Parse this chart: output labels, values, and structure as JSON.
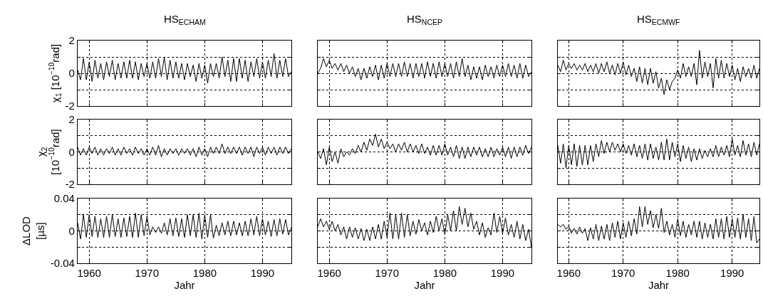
{
  "chart_data": [
    {
      "type": "line",
      "title": "HS$_{ECHAM}$",
      "ylabel": "χ$_{1}$ [10$^{−10}$rad]",
      "xlim": [
        1958,
        1995
      ],
      "ylim": [
        -2,
        2
      ],
      "xticks": [
        1960,
        1970,
        1980,
        1990
      ],
      "yticks": [
        -2,
        {
          "value": -1,
          "label": null
        },
        0,
        {
          "value": 1,
          "label": null
        },
        2
      ],
      "grid": true,
      "tick_labels": "y",
      "x": [
        1958,
        1958.5,
        1959,
        1959.5,
        1960,
        1960.5,
        1961,
        1961.5,
        1962,
        1962.5,
        1963,
        1963.5,
        1964,
        1964.5,
        1965,
        1965.5,
        1966,
        1966.5,
        1967,
        1967.5,
        1968,
        1968.5,
        1969,
        1969.5,
        1970,
        1970.5,
        1971,
        1971.5,
        1972,
        1972.5,
        1973,
        1973.5,
        1974,
        1974.5,
        1975,
        1975.5,
        1976,
        1976.5,
        1977,
        1977.5,
        1978,
        1978.5,
        1979,
        1979.5,
        1980,
        1980.5,
        1981,
        1981.5,
        1982,
        1982.5,
        1983,
        1983.5,
        1984,
        1984.5,
        1985,
        1985.5,
        1986,
        1986.5,
        1987,
        1987.5,
        1988,
        1988.5,
        1989,
        1989.5,
        1990,
        1990.5,
        1991,
        1991.5,
        1992,
        1992.5,
        1993,
        1993.5,
        1994,
        1994.5,
        1995
      ],
      "series": [
        {
          "color": "#000000",
          "values": [
            0.2,
            -0.4,
            0.9,
            -0.4,
            0.7,
            -0.5,
            0.8,
            -0.3,
            0.6,
            -0.4,
            0.7,
            -0.2,
            0.8,
            -0.4,
            0.6,
            -0.3,
            0.7,
            -0.3,
            0.8,
            -0.3,
            0.7,
            -0.4,
            0.6,
            -0.2,
            0.6,
            -0.3,
            0.7,
            -0.3,
            0.9,
            -0.2,
            1.0,
            -0.4,
            0.8,
            -0.3,
            0.7,
            -0.3,
            0.6,
            -0.4,
            0.6,
            -0.2,
            0.5,
            -0.5,
            0.6,
            -0.3,
            0.5,
            -0.6,
            0.6,
            -0.2,
            0.6,
            -0.3,
            1.0,
            -0.2,
            0.8,
            -0.5,
            0.9,
            -0.5,
            0.9,
            -0.3,
            0.8,
            -0.5,
            0.7,
            -0.2,
            0.9,
            -0.3,
            0.7,
            -0.3,
            0.8,
            -0.2,
            1.2,
            -0.3,
            0.8,
            -0.2,
            0.9,
            -0.2,
            0.1
          ]
        }
      ]
    },
    {
      "type": "line",
      "title": "HS$_{NCEP}$",
      "xlim": [
        1958,
        1995
      ],
      "ylim": [
        -2,
        2
      ],
      "xticks": [
        1960,
        1970,
        1980,
        1990
      ],
      "yticks": [
        -2,
        {
          "value": -1,
          "label": null
        },
        0,
        {
          "value": 1,
          "label": null
        },
        2
      ],
      "grid": true,
      "tick_labels": false,
      "x": [
        1958,
        1958.5,
        1959,
        1959.5,
        1960,
        1960.5,
        1961,
        1961.5,
        1962,
        1962.5,
        1963,
        1963.5,
        1964,
        1964.5,
        1965,
        1965.5,
        1966,
        1966.5,
        1967,
        1967.5,
        1968,
        1968.5,
        1969,
        1969.5,
        1970,
        1970.5,
        1971,
        1971.5,
        1972,
        1972.5,
        1973,
        1973.5,
        1974,
        1974.5,
        1975,
        1975.5,
        1976,
        1976.5,
        1977,
        1977.5,
        1978,
        1978.5,
        1979,
        1979.5,
        1980,
        1980.5,
        1981,
        1981.5,
        1982,
        1982.5,
        1983,
        1983.5,
        1984,
        1984.5,
        1985,
        1985.5,
        1986,
        1986.5,
        1987,
        1987.5,
        1988,
        1988.5,
        1989,
        1989.5,
        1990,
        1990.5,
        1991,
        1991.5,
        1992,
        1992.5,
        1993,
        1993.5,
        1994,
        1994.5,
        1995
      ],
      "series": [
        {
          "color": "#000000",
          "values": [
            0.0,
            0.3,
            0.9,
            0.4,
            0.8,
            0.3,
            0.6,
            0.2,
            0.6,
            0.1,
            0.5,
            0.0,
            0.4,
            -0.2,
            0.3,
            -0.4,
            0.3,
            -0.3,
            0.4,
            -0.2,
            0.5,
            -0.4,
            0.5,
            -0.3,
            0.6,
            -0.2,
            0.6,
            -0.2,
            0.6,
            -0.2,
            0.7,
            -0.2,
            0.6,
            -0.3,
            0.6,
            -0.2,
            0.6,
            -0.3,
            0.7,
            -0.2,
            0.6,
            -0.3,
            0.7,
            -0.2,
            0.6,
            -0.2,
            0.6,
            -0.3,
            0.7,
            -0.2,
            0.9,
            -0.2,
            0.5,
            -0.4,
            0.4,
            -0.3,
            0.4,
            -0.4,
            0.5,
            -0.2,
            0.4,
            -0.3,
            0.5,
            -0.2,
            0.5,
            -0.2,
            0.6,
            -0.2,
            0.5,
            -0.3,
            0.6,
            -0.3,
            0.5,
            -0.2,
            0.1
          ]
        }
      ]
    },
    {
      "type": "line",
      "title": "HS$_{ECMWF}$",
      "xlim": [
        1958,
        1995
      ],
      "ylim": [
        -2,
        2
      ],
      "xticks": [
        1960,
        1970,
        1980,
        1990
      ],
      "yticks": [
        -2,
        {
          "value": -1,
          "label": null
        },
        0,
        {
          "value": 1,
          "label": null
        },
        2
      ],
      "grid": true,
      "tick_labels": false,
      "x": [
        1958,
        1958.5,
        1959,
        1959.5,
        1960,
        1960.5,
        1961,
        1961.5,
        1962,
        1962.5,
        1963,
        1963.5,
        1964,
        1964.5,
        1965,
        1965.5,
        1966,
        1966.5,
        1967,
        1967.5,
        1968,
        1968.5,
        1969,
        1969.5,
        1970,
        1970.5,
        1971,
        1971.5,
        1972,
        1972.5,
        1973,
        1973.5,
        1974,
        1974.5,
        1975,
        1975.5,
        1976,
        1976.5,
        1977,
        1977.5,
        1978,
        1978.5,
        1979,
        1979.5,
        1980,
        1980.5,
        1981,
        1981.5,
        1982,
        1982.5,
        1983,
        1983.5,
        1984,
        1984.5,
        1985,
        1985.5,
        1986,
        1986.5,
        1987,
        1987.5,
        1988,
        1988.5,
        1989,
        1989.5,
        1990,
        1990.5,
        1991,
        1991.5,
        1992,
        1992.5,
        1993,
        1993.5,
        1994,
        1994.5,
        1995
      ],
      "series": [
        {
          "color": "#000000",
          "values": [
            0.5,
            0.1,
            0.8,
            0.2,
            0.6,
            0.3,
            0.6,
            0.2,
            0.5,
            0.2,
            0.6,
            0.1,
            0.5,
            0.1,
            0.6,
            0.0,
            0.6,
            0.1,
            0.7,
            0.0,
            0.5,
            -0.1,
            0.6,
            0.0,
            0.7,
            -0.1,
            0.5,
            -0.2,
            0.3,
            -0.5,
            0.4,
            -0.6,
            0.3,
            -0.7,
            0.3,
            -0.6,
            0.1,
            -0.9,
            -0.3,
            -1.3,
            -0.4,
            -1.0,
            -0.5,
            -0.3,
            0.2,
            -0.3,
            0.6,
            -0.2,
            0.4,
            -0.2,
            0.6,
            -0.7,
            1.4,
            -0.3,
            0.7,
            -0.2,
            0.6,
            -0.9,
            0.9,
            -0.3,
            0.8,
            -0.3,
            0.6,
            -0.2,
            0.5,
            -0.4,
            0.3,
            -0.5,
            0.4,
            -0.2,
            0.3,
            -0.3,
            0.5,
            -0.3,
            0.3
          ]
        }
      ]
    },
    {
      "type": "line",
      "ylabel": "χ$_{2}$\n[10$^{−10}$rad]",
      "xlim": [
        1958,
        1995
      ],
      "ylim": [
        -2,
        2
      ],
      "xticks": [
        1960,
        1970,
        1980,
        1990
      ],
      "yticks": [
        -2,
        {
          "value": -1,
          "label": null
        },
        0,
        {
          "value": 1,
          "label": null
        },
        2
      ],
      "grid": true,
      "tick_labels": "y",
      "x": [
        1958,
        1958.5,
        1959,
        1959.5,
        1960,
        1960.5,
        1961,
        1961.5,
        1962,
        1962.5,
        1963,
        1963.5,
        1964,
        1964.5,
        1965,
        1965.5,
        1966,
        1966.5,
        1967,
        1967.5,
        1968,
        1968.5,
        1969,
        1969.5,
        1970,
        1970.5,
        1971,
        1971.5,
        1972,
        1972.5,
        1973,
        1973.5,
        1974,
        1974.5,
        1975,
        1975.5,
        1976,
        1976.5,
        1977,
        1977.5,
        1978,
        1978.5,
        1979,
        1979.5,
        1980,
        1980.5,
        1981,
        1981.5,
        1982,
        1982.5,
        1983,
        1983.5,
        1984,
        1984.5,
        1985,
        1985.5,
        1986,
        1986.5,
        1987,
        1987.5,
        1988,
        1988.5,
        1989,
        1989.5,
        1990,
        1990.5,
        1991,
        1991.5,
        1992,
        1992.5,
        1993,
        1993.5,
        1994,
        1994.5,
        1995
      ],
      "series": [
        {
          "color": "#000000",
          "values": [
            0.3,
            -0.2,
            0.2,
            -0.2,
            0.3,
            -0.1,
            0.3,
            -0.2,
            0.2,
            -0.2,
            0.2,
            -0.1,
            0.3,
            -0.2,
            0.2,
            -0.2,
            0.3,
            -0.1,
            0.2,
            -0.2,
            0.3,
            -0.1,
            0.2,
            -0.2,
            0.2,
            -0.2,
            0.3,
            -0.2,
            0.4,
            -0.3,
            0.2,
            -0.2,
            0.2,
            -0.1,
            0.2,
            -0.2,
            0.2,
            -0.1,
            0.2,
            -0.2,
            0.2,
            -0.3,
            0.3,
            -0.2,
            0.2,
            -0.3,
            0.3,
            -0.1,
            0.3,
            -0.1,
            0.5,
            -0.1,
            0.3,
            -0.1,
            0.3,
            -0.1,
            0.3,
            -0.2,
            0.3,
            -0.1,
            0.3,
            -0.3,
            0.3,
            -0.1,
            0.3,
            -0.2,
            0.3,
            -0.1,
            0.3,
            -0.2,
            0.3,
            -0.1,
            0.3,
            -0.1,
            0.2
          ]
        }
      ]
    },
    {
      "type": "line",
      "xlim": [
        1958,
        1995
      ],
      "ylim": [
        -2,
        2
      ],
      "xticks": [
        1960,
        1970,
        1980,
        1990
      ],
      "yticks": [
        -2,
        {
          "value": -1,
          "label": null
        },
        0,
        {
          "value": 1,
          "label": null
        },
        2
      ],
      "grid": true,
      "tick_labels": false,
      "x": [
        1958,
        1958.5,
        1959,
        1959.5,
        1960,
        1960.5,
        1961,
        1961.5,
        1962,
        1962.5,
        1963,
        1963.5,
        1964,
        1964.5,
        1965,
        1965.5,
        1966,
        1966.5,
        1967,
        1967.5,
        1968,
        1968.5,
        1969,
        1969.5,
        1970,
        1970.5,
        1971,
        1971.5,
        1972,
        1972.5,
        1973,
        1973.5,
        1974,
        1974.5,
        1975,
        1975.5,
        1976,
        1976.5,
        1977,
        1977.5,
        1978,
        1978.5,
        1979,
        1979.5,
        1980,
        1980.5,
        1981,
        1981.5,
        1982,
        1982.5,
        1983,
        1983.5,
        1984,
        1984.5,
        1985,
        1985.5,
        1986,
        1986.5,
        1987,
        1987.5,
        1988,
        1988.5,
        1989,
        1989.5,
        1990,
        1990.5,
        1991,
        1991.5,
        1992,
        1992.5,
        1993,
        1993.5,
        1994,
        1994.5,
        1995
      ],
      "series": [
        {
          "color": "#000000",
          "values": [
            0.0,
            -0.4,
            0.2,
            -0.8,
            0.3,
            -0.6,
            0.0,
            -0.7,
            0.2,
            -0.3,
            0.0,
            -0.2,
            0.2,
            -0.1,
            0.4,
            0.0,
            0.6,
            0.1,
            0.8,
            0.4,
            1.1,
            0.3,
            0.8,
            0.2,
            0.6,
            0.2,
            0.5,
            0.0,
            0.5,
            0.1,
            0.6,
            0.0,
            0.5,
            0.0,
            0.4,
            -0.1,
            0.5,
            -0.1,
            0.3,
            -0.2,
            0.4,
            -0.2,
            0.4,
            -0.2,
            0.5,
            -0.2,
            0.3,
            -0.3,
            0.4,
            -0.4,
            0.3,
            -0.4,
            0.3,
            -0.3,
            0.3,
            -0.2,
            0.3,
            -0.3,
            0.2,
            -0.3,
            0.3,
            -0.3,
            0.2,
            -0.2,
            0.3,
            -0.3,
            0.3,
            -0.4,
            0.3,
            -0.3,
            0.3,
            -0.2,
            0.4,
            -0.1,
            0.3
          ]
        }
      ]
    },
    {
      "type": "line",
      "xlim": [
        1958,
        1995
      ],
      "ylim": [
        -2,
        2
      ],
      "xticks": [
        1960,
        1970,
        1980,
        1990
      ],
      "yticks": [
        -2,
        {
          "value": -1,
          "label": null
        },
        0,
        {
          "value": 1,
          "label": null
        },
        2
      ],
      "grid": true,
      "tick_labels": false,
      "x": [
        1958,
        1958.5,
        1959,
        1959.5,
        1960,
        1960.5,
        1961,
        1961.5,
        1962,
        1962.5,
        1963,
        1963.5,
        1964,
        1964.5,
        1965,
        1965.5,
        1966,
        1966.5,
        1967,
        1967.5,
        1968,
        1968.5,
        1969,
        1969.5,
        1970,
        1970.5,
        1971,
        1971.5,
        1972,
        1972.5,
        1973,
        1973.5,
        1974,
        1974.5,
        1975,
        1975.5,
        1976,
        1976.5,
        1977,
        1977.5,
        1978,
        1978.5,
        1979,
        1979.5,
        1980,
        1980.5,
        1981,
        1981.5,
        1982,
        1982.5,
        1983,
        1983.5,
        1984,
        1984.5,
        1985,
        1985.5,
        1986,
        1986.5,
        1987,
        1987.5,
        1988,
        1988.5,
        1989,
        1989.5,
        1990,
        1990.5,
        1991,
        1991.5,
        1992,
        1992.5,
        1993,
        1993.5,
        1994,
        1994.5,
        1995
      ],
      "series": [
        {
          "color": "#000000",
          "values": [
            0.4,
            -0.7,
            0.5,
            -1.0,
            0.4,
            -0.8,
            0.5,
            -0.9,
            0.4,
            -0.8,
            0.4,
            -0.8,
            0.4,
            -0.6,
            0.5,
            -0.3,
            0.7,
            -0.1,
            0.6,
            0.0,
            0.6,
            0.1,
            0.5,
            0.0,
            0.5,
            -0.1,
            0.4,
            -0.2,
            0.5,
            -0.3,
            0.4,
            -0.4,
            0.5,
            -0.5,
            0.5,
            -0.4,
            0.3,
            -0.5,
            0.6,
            -0.5,
            0.8,
            -0.5,
            0.6,
            -0.3,
            0.5,
            -0.6,
            0.4,
            -0.4,
            0.3,
            -0.6,
            0.2,
            -0.5,
            0.2,
            -0.4,
            0.1,
            -0.3,
            0.2,
            -0.3,
            0.4,
            -0.3,
            0.3,
            -0.2,
            0.4,
            -0.3,
            0.8,
            -0.2,
            0.4,
            -0.3,
            0.7,
            -0.2,
            0.5,
            -0.3,
            0.6,
            -0.2,
            0.5
          ]
        }
      ]
    },
    {
      "type": "line",
      "ylabel": "ΔLOD\n[µs]",
      "xlabel": "Jahr",
      "xlim": [
        1958,
        1995
      ],
      "ylim": [
        -0.04,
        0.04
      ],
      "xticks": [
        1960,
        1970,
        1980,
        1990
      ],
      "yticks": [
        -0.04,
        {
          "value": -0.02,
          "label": null
        },
        0,
        {
          "value": 0.02,
          "label": null
        },
        0.04
      ],
      "grid": true,
      "x": [
        1958,
        1958.5,
        1959,
        1959.5,
        1960,
        1960.5,
        1961,
        1961.5,
        1962,
        1962.5,
        1963,
        1963.5,
        1964,
        1964.5,
        1965,
        1965.5,
        1966,
        1966.5,
        1967,
        1967.5,
        1968,
        1968.5,
        1969,
        1969.5,
        1970,
        1970.5,
        1971,
        1971.5,
        1972,
        1972.5,
        1973,
        1973.5,
        1974,
        1974.5,
        1975,
        1975.5,
        1976,
        1976.5,
        1977,
        1977.5,
        1978,
        1978.5,
        1979,
        1979.5,
        1980,
        1980.5,
        1981,
        1981.5,
        1982,
        1982.5,
        1983,
        1983.5,
        1984,
        1984.5,
        1985,
        1985.5,
        1986,
        1986.5,
        1987,
        1987.5,
        1988,
        1988.5,
        1989,
        1989.5,
        1990,
        1990.5,
        1991,
        1991.5,
        1992,
        1992.5,
        1993,
        1993.5,
        1994,
        1994.5,
        1995
      ],
      "series": [
        {
          "color": "#000000",
          "values": [
            0.01,
            -0.01,
            0.02,
            -0.008,
            0.02,
            -0.007,
            0.018,
            -0.008,
            0.015,
            -0.008,
            0.018,
            -0.008,
            0.02,
            -0.007,
            0.015,
            -0.008,
            0.016,
            -0.007,
            0.018,
            -0.008,
            0.022,
            -0.008,
            0.02,
            -0.006,
            0.018,
            -0.005,
            0.005,
            -0.002,
            0.005,
            -0.003,
            0.01,
            -0.005,
            0.015,
            -0.006,
            0.016,
            -0.007,
            0.015,
            -0.008,
            0.02,
            -0.006,
            0.02,
            -0.008,
            0.022,
            -0.01,
            0.02,
            -0.008,
            0.02,
            -0.009,
            0.007,
            -0.006,
            0.01,
            -0.005,
            0.012,
            -0.006,
            0.012,
            -0.005,
            0.01,
            -0.006,
            0.012,
            -0.006,
            0.015,
            -0.005,
            0.018,
            -0.006,
            0.015,
            -0.005,
            0.012,
            -0.007,
            0.014,
            -0.006,
            0.015,
            -0.004,
            0.014,
            -0.005,
            0.004
          ]
        }
      ]
    },
    {
      "type": "line",
      "xlabel": "Jahr",
      "xlim": [
        1958,
        1995
      ],
      "ylim": [
        -0.04,
        0.04
      ],
      "xticks": [
        1960,
        1970,
        1980,
        1990
      ],
      "yticks": [
        -0.04,
        {
          "value": -0.02,
          "label": null
        },
        0,
        {
          "value": 0.02,
          "label": null
        },
        0.04
      ],
      "grid": true,
      "tick_labels": "x",
      "x": [
        1958,
        1958.5,
        1959,
        1959.5,
        1960,
        1960.5,
        1961,
        1961.5,
        1962,
        1962.5,
        1963,
        1963.5,
        1964,
        1964.5,
        1965,
        1965.5,
        1966,
        1966.5,
        1967,
        1967.5,
        1968,
        1968.5,
        1969,
        1969.5,
        1970,
        1970.5,
        1971,
        1971.5,
        1972,
        1972.5,
        1973,
        1973.5,
        1974,
        1974.5,
        1975,
        1975.5,
        1976,
        1976.5,
        1977,
        1977.5,
        1978,
        1978.5,
        1979,
        1979.5,
        1980,
        1980.5,
        1981,
        1981.5,
        1982,
        1982.5,
        1983,
        1983.5,
        1984,
        1984.5,
        1985,
        1985.5,
        1986,
        1986.5,
        1987,
        1987.5,
        1988,
        1988.5,
        1989,
        1989.5,
        1990,
        1990.5,
        1991,
        1991.5,
        1992,
        1992.5,
        1993,
        1993.5,
        1994,
        1994.5,
        1995
      ],
      "series": [
        {
          "color": "#000000",
          "values": [
            0.005,
            0.015,
            0.005,
            0.012,
            0.002,
            0.012,
            0.0,
            0.008,
            -0.005,
            0.005,
            -0.01,
            0.005,
            -0.008,
            0.004,
            -0.01,
            0.003,
            -0.012,
            0.002,
            -0.012,
            0.005,
            -0.01,
            0.008,
            -0.01,
            0.012,
            -0.008,
            0.022,
            -0.01,
            0.02,
            -0.01,
            0.022,
            -0.008,
            0.02,
            -0.006,
            0.012,
            -0.004,
            0.014,
            0.0,
            0.01,
            -0.005,
            0.012,
            -0.002,
            0.018,
            0.0,
            0.015,
            -0.004,
            0.02,
            0.0,
            0.025,
            0.0,
            0.03,
            0.008,
            0.028,
            0.005,
            0.022,
            0.002,
            0.012,
            -0.005,
            0.01,
            -0.008,
            0.004,
            -0.005,
            0.022,
            -0.002,
            0.018,
            -0.003,
            0.016,
            -0.005,
            0.008,
            -0.008,
            0.012,
            -0.01,
            0.008,
            -0.012,
            0.002,
            -0.02
          ]
        }
      ]
    },
    {
      "type": "line",
      "xlabel": "Jahr",
      "xlim": [
        1958,
        1995
      ],
      "ylim": [
        -0.04,
        0.04
      ],
      "xticks": [
        1960,
        1970,
        1980,
        1990
      ],
      "yticks": [
        -0.04,
        {
          "value": -0.02,
          "label": null
        },
        0,
        {
          "value": 0.02,
          "label": null
        },
        0.04
      ],
      "grid": true,
      "tick_labels": "x",
      "x": [
        1958,
        1958.5,
        1959,
        1959.5,
        1960,
        1960.5,
        1961,
        1961.5,
        1962,
        1962.5,
        1963,
        1963.5,
        1964,
        1964.5,
        1965,
        1965.5,
        1966,
        1966.5,
        1967,
        1967.5,
        1968,
        1968.5,
        1969,
        1969.5,
        1970,
        1970.5,
        1971,
        1971.5,
        1972,
        1972.5,
        1973,
        1973.5,
        1974,
        1974.5,
        1975,
        1975.5,
        1976,
        1976.5,
        1977,
        1977.5,
        1978,
        1978.5,
        1979,
        1979.5,
        1980,
        1980.5,
        1981,
        1981.5,
        1982,
        1982.5,
        1983,
        1983.5,
        1984,
        1984.5,
        1985,
        1985.5,
        1986,
        1986.5,
        1987,
        1987.5,
        1988,
        1988.5,
        1989,
        1989.5,
        1990,
        1990.5,
        1991,
        1991.5,
        1992,
        1992.5,
        1993,
        1993.5,
        1994,
        1994.5,
        1995
      ],
      "series": [
        {
          "color": "#000000",
          "values": [
            0.008,
            0.005,
            0.008,
            0.002,
            0.006,
            -0.003,
            0.003,
            -0.004,
            0.005,
            -0.003,
            0.003,
            -0.012,
            0.004,
            -0.01,
            0.008,
            -0.012,
            0.006,
            -0.01,
            0.008,
            -0.012,
            0.01,
            -0.008,
            0.012,
            -0.01,
            0.01,
            -0.008,
            0.012,
            -0.006,
            0.015,
            -0.004,
            0.03,
            0.005,
            0.03,
            0.008,
            0.025,
            0.004,
            0.02,
            0.003,
            0.028,
            -0.002,
            0.012,
            -0.005,
            0.008,
            -0.008,
            0.015,
            -0.006,
            0.012,
            -0.008,
            0.008,
            -0.005,
            0.012,
            -0.008,
            0.012,
            -0.01,
            0.01,
            -0.008,
            0.008,
            -0.01,
            0.015,
            -0.008,
            0.015,
            -0.01,
            0.018,
            -0.008,
            0.015,
            -0.008,
            0.016,
            -0.01,
            0.02,
            -0.008,
            0.015,
            -0.012,
            0.018,
            -0.015,
            -0.01
          ]
        }
      ]
    }
  ]
}
